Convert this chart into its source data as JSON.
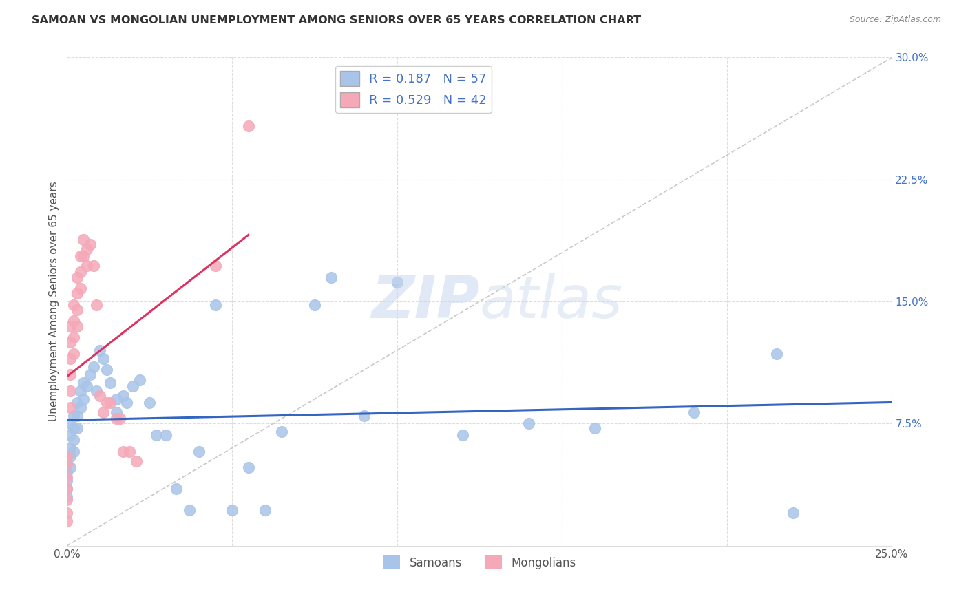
{
  "title": "SAMOAN VS MONGOLIAN UNEMPLOYMENT AMONG SENIORS OVER 65 YEARS CORRELATION CHART",
  "source": "Source: ZipAtlas.com",
  "ylabel": "Unemployment Among Seniors over 65 years",
  "xlim": [
    0,
    0.25
  ],
  "ylim": [
    0,
    0.3
  ],
  "samoan_R": 0.187,
  "samoan_N": 57,
  "mongolian_R": 0.529,
  "mongolian_N": 42,
  "samoan_color": "#a8c4e8",
  "mongolian_color": "#f5a8b8",
  "samoan_line_color": "#3465c0",
  "mongolian_line_color": "#e03060",
  "diagonal_color": "#c8c8c8",
  "watermark_zip": "ZIP",
  "watermark_atlas": "atlas",
  "samoan_x": [
    0.0,
    0.0,
    0.0,
    0.0,
    0.0,
    0.0,
    0.001,
    0.001,
    0.001,
    0.001,
    0.001,
    0.002,
    0.002,
    0.002,
    0.002,
    0.003,
    0.003,
    0.003,
    0.004,
    0.004,
    0.005,
    0.005,
    0.006,
    0.007,
    0.008,
    0.009,
    0.01,
    0.011,
    0.012,
    0.013,
    0.015,
    0.015,
    0.017,
    0.018,
    0.02,
    0.022,
    0.025,
    0.027,
    0.03,
    0.033,
    0.037,
    0.04,
    0.045,
    0.05,
    0.055,
    0.06,
    0.065,
    0.075,
    0.08,
    0.09,
    0.1,
    0.12,
    0.14,
    0.16,
    0.19,
    0.215,
    0.22
  ],
  "samoan_y": [
    0.055,
    0.05,
    0.045,
    0.04,
    0.035,
    0.03,
    0.075,
    0.068,
    0.06,
    0.055,
    0.048,
    0.08,
    0.072,
    0.065,
    0.058,
    0.088,
    0.08,
    0.072,
    0.095,
    0.085,
    0.1,
    0.09,
    0.098,
    0.105,
    0.11,
    0.095,
    0.12,
    0.115,
    0.108,
    0.1,
    0.09,
    0.082,
    0.092,
    0.088,
    0.098,
    0.102,
    0.088,
    0.068,
    0.068,
    0.035,
    0.022,
    0.058,
    0.148,
    0.022,
    0.048,
    0.022,
    0.07,
    0.148,
    0.165,
    0.08,
    0.162,
    0.068,
    0.075,
    0.072,
    0.082,
    0.118,
    0.02
  ],
  "mongolian_x": [
    0.0,
    0.0,
    0.0,
    0.0,
    0.0,
    0.0,
    0.0,
    0.001,
    0.001,
    0.001,
    0.001,
    0.001,
    0.001,
    0.002,
    0.002,
    0.002,
    0.002,
    0.003,
    0.003,
    0.003,
    0.003,
    0.004,
    0.004,
    0.004,
    0.005,
    0.005,
    0.006,
    0.006,
    0.007,
    0.008,
    0.009,
    0.01,
    0.011,
    0.012,
    0.013,
    0.015,
    0.016,
    0.017,
    0.019,
    0.021,
    0.045,
    0.055
  ],
  "mongolian_y": [
    0.055,
    0.05,
    0.042,
    0.035,
    0.028,
    0.02,
    0.015,
    0.135,
    0.125,
    0.115,
    0.105,
    0.095,
    0.085,
    0.148,
    0.138,
    0.128,
    0.118,
    0.165,
    0.155,
    0.145,
    0.135,
    0.178,
    0.168,
    0.158,
    0.188,
    0.178,
    0.182,
    0.172,
    0.185,
    0.172,
    0.148,
    0.092,
    0.082,
    0.088,
    0.088,
    0.078,
    0.078,
    0.058,
    0.058,
    0.052,
    0.172,
    0.258
  ]
}
